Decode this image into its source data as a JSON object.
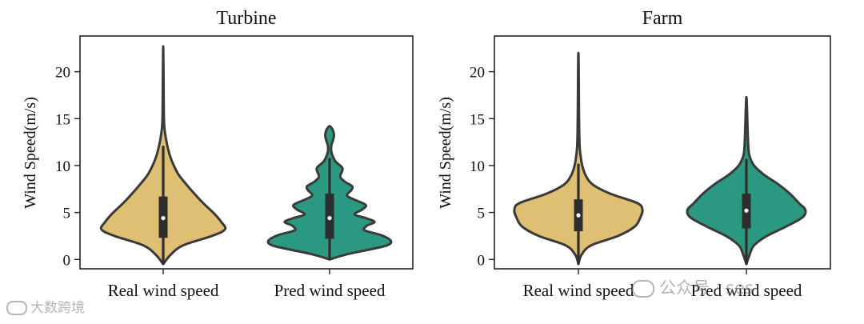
{
  "chart_data": [
    {
      "type": "violin",
      "title": "Turbine",
      "xlabel": "",
      "ylabel": "Wind Speed(m/s)",
      "ylim": [
        -1.0,
        23.8
      ],
      "yticks": [
        "0",
        "5",
        "10",
        "15",
        "20"
      ],
      "categories": [
        "Real wind speed",
        "Pred wind speed"
      ],
      "series": [
        {
          "category": "Real wind speed",
          "color": "#dfbf73",
          "min": -0.5,
          "max": 22.7,
          "q1": 2.3,
          "median": 4.4,
          "q3": 6.7,
          "whisker_low": -0.5,
          "whisker_high": 12.1,
          "profile": [
            [
              -0.5,
              0.0
            ],
            [
              0.5,
              0.12
            ],
            [
              1.5,
              0.32
            ],
            [
              2.5,
              0.78
            ],
            [
              3.2,
              0.99
            ],
            [
              4.0,
              0.93
            ],
            [
              5.0,
              0.8
            ],
            [
              6.0,
              0.64
            ],
            [
              7.0,
              0.5
            ],
            [
              8.0,
              0.37
            ],
            [
              9.0,
              0.25
            ],
            [
              10.0,
              0.17
            ],
            [
              11.0,
              0.11
            ],
            [
              12.0,
              0.07
            ],
            [
              13.0,
              0.04
            ],
            [
              14.0,
              0.02
            ],
            [
              15.0,
              0.012
            ],
            [
              17.0,
              0.008
            ],
            [
              20.0,
              0.005
            ],
            [
              22.7,
              0.0
            ]
          ]
        },
        {
          "category": "Pred wind speed",
          "color": "#2b9882",
          "min": 0.0,
          "max": 14.2,
          "q1": 2.2,
          "median": 4.4,
          "q3": 7.0,
          "whisker_low": 0.0,
          "whisker_high": 10.8,
          "profile": [
            [
              0.0,
              0.0
            ],
            [
              0.5,
              0.25
            ],
            [
              1.0,
              0.6
            ],
            [
              1.5,
              0.92
            ],
            [
              2.0,
              0.98
            ],
            [
              2.6,
              0.82
            ],
            [
              3.1,
              0.56
            ],
            [
              3.6,
              0.6
            ],
            [
              4.0,
              0.72
            ],
            [
              4.4,
              0.58
            ],
            [
              4.8,
              0.4
            ],
            [
              5.3,
              0.52
            ],
            [
              5.8,
              0.58
            ],
            [
              6.3,
              0.42
            ],
            [
              6.8,
              0.28
            ],
            [
              7.4,
              0.35
            ],
            [
              7.8,
              0.36
            ],
            [
              8.3,
              0.24
            ],
            [
              8.8,
              0.17
            ],
            [
              9.4,
              0.2
            ],
            [
              9.8,
              0.2
            ],
            [
              10.4,
              0.1
            ],
            [
              11.0,
              0.05
            ],
            [
              11.6,
              0.025
            ],
            [
              12.2,
              0.03
            ],
            [
              12.8,
              0.06
            ],
            [
              13.3,
              0.07
            ],
            [
              13.8,
              0.05
            ],
            [
              14.2,
              0.0
            ]
          ]
        }
      ]
    },
    {
      "type": "violin",
      "title": "Farm",
      "xlabel": "",
      "ylabel": "Wind Speed(m/s)",
      "ylim": [
        -1.0,
        23.8
      ],
      "yticks": [
        "0",
        "5",
        "10",
        "15",
        "20"
      ],
      "categories": [
        "Real wind speed",
        "Pred wind speed"
      ],
      "series": [
        {
          "category": "Real wind speed",
          "color": "#dfbf73",
          "min": -0.5,
          "max": 22.0,
          "q1": 3.0,
          "median": 4.7,
          "q3": 6.4,
          "whisker_low": -0.5,
          "whisker_high": 10.2,
          "profile": [
            [
              -0.5,
              0.0
            ],
            [
              0.5,
              0.05
            ],
            [
              1.5,
              0.2
            ],
            [
              2.5,
              0.62
            ],
            [
              3.5,
              0.88
            ],
            [
              4.5,
              0.97
            ],
            [
              5.3,
              1.0
            ],
            [
              6.0,
              0.92
            ],
            [
              7.0,
              0.5
            ],
            [
              8.0,
              0.22
            ],
            [
              9.0,
              0.11
            ],
            [
              10.0,
              0.06
            ],
            [
              11.0,
              0.035
            ],
            [
              12.0,
              0.02
            ],
            [
              14.0,
              0.012
            ],
            [
              17.0,
              0.008
            ],
            [
              20.0,
              0.005
            ],
            [
              22.0,
              0.0
            ]
          ]
        },
        {
          "category": "Pred wind speed",
          "color": "#2b9882",
          "min": -0.5,
          "max": 17.3,
          "q1": 3.3,
          "median": 5.2,
          "q3": 7.0,
          "whisker_low": -0.5,
          "whisker_high": 10.7,
          "profile": [
            [
              -0.5,
              0.0
            ],
            [
              0.5,
              0.05
            ],
            [
              1.5,
              0.12
            ],
            [
              2.5,
              0.32
            ],
            [
              3.5,
              0.62
            ],
            [
              4.5,
              0.88
            ],
            [
              5.3,
              0.92
            ],
            [
              6.0,
              0.82
            ],
            [
              7.0,
              0.68
            ],
            [
              8.0,
              0.5
            ],
            [
              9.0,
              0.28
            ],
            [
              10.0,
              0.12
            ],
            [
              11.0,
              0.05
            ],
            [
              12.0,
              0.03
            ],
            [
              14.0,
              0.018
            ],
            [
              15.5,
              0.012
            ],
            [
              17.3,
              0.0
            ]
          ]
        }
      ]
    }
  ],
  "watermarks": {
    "left_text": "大数跨境",
    "right_text": "公众号 · ses"
  }
}
